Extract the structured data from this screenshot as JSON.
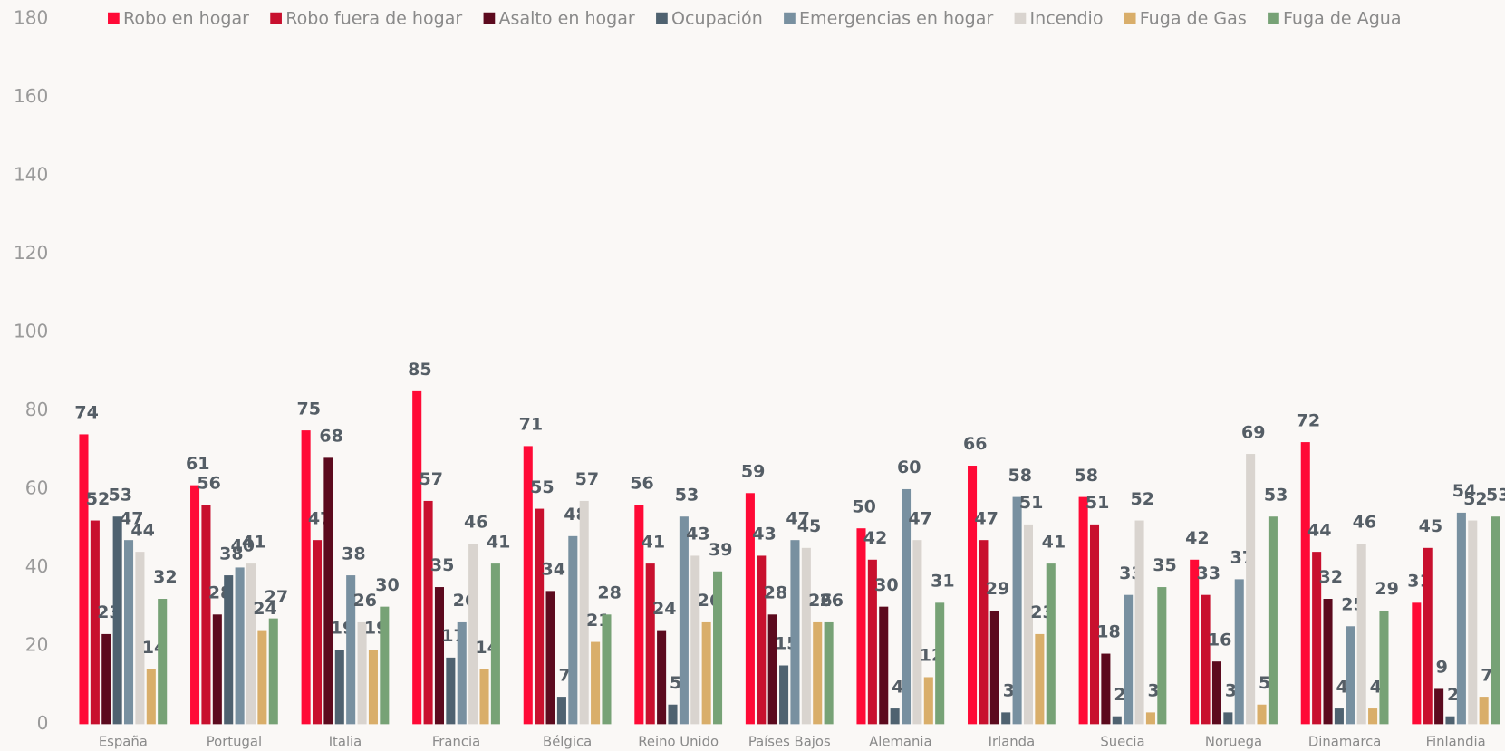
{
  "chart_data": {
    "type": "bar",
    "categories": [
      "España",
      "Portugal",
      "Italia",
      "Francia",
      "Bélgica",
      "Reino Unido",
      "Países Bajos",
      "Alemania",
      "Irlanda",
      "Suecia",
      "Noruega",
      "Dinamarca",
      "Finlandia"
    ],
    "series": [
      {
        "name": "Robo en hogar",
        "color": "#ff0a36",
        "values": [
          74,
          61,
          75,
          85,
          71,
          56,
          59,
          50,
          66,
          58,
          42,
          72,
          31
        ]
      },
      {
        "name": "Robo fuera de hogar",
        "color": "#c8102e",
        "values": [
          52,
          56,
          47,
          57,
          55,
          41,
          43,
          42,
          47,
          51,
          33,
          44,
          45
        ]
      },
      {
        "name": "Asalto en hogar",
        "color": "#5c0a1e",
        "values": [
          23,
          28,
          68,
          35,
          34,
          24,
          28,
          30,
          29,
          18,
          16,
          32,
          9
        ]
      },
      {
        "name": "Ocupación",
        "color": "#4f6270",
        "values": [
          53,
          38,
          19,
          17,
          7,
          5,
          15,
          4,
          3,
          2,
          3,
          4,
          2
        ]
      },
      {
        "name": "Emergencias en hogar",
        "color": "#7890a0",
        "values": [
          47,
          40,
          38,
          26,
          48,
          53,
          47,
          60,
          58,
          33,
          37,
          25,
          54
        ]
      },
      {
        "name": "Incendio",
        "color": "#d9d4cf",
        "values": [
          44,
          41,
          26,
          46,
          57,
          43,
          45,
          47,
          51,
          52,
          69,
          46,
          52
        ]
      },
      {
        "name": "Fuga de Gas",
        "color": "#d9ae6a",
        "values": [
          14,
          24,
          19,
          14,
          21,
          26,
          26,
          12,
          23,
          3,
          5,
          4,
          7
        ]
      },
      {
        "name": "Fuga de Agua",
        "color": "#77a276",
        "values": [
          32,
          27,
          30,
          41,
          28,
          39,
          26,
          31,
          41,
          35,
          53,
          29,
          53
        ]
      }
    ],
    "ylim": [
      0,
      180
    ],
    "yticks": [
      0,
      20,
      40,
      60,
      80,
      100,
      120,
      140,
      160,
      180
    ],
    "grid": false,
    "legend": "top"
  }
}
